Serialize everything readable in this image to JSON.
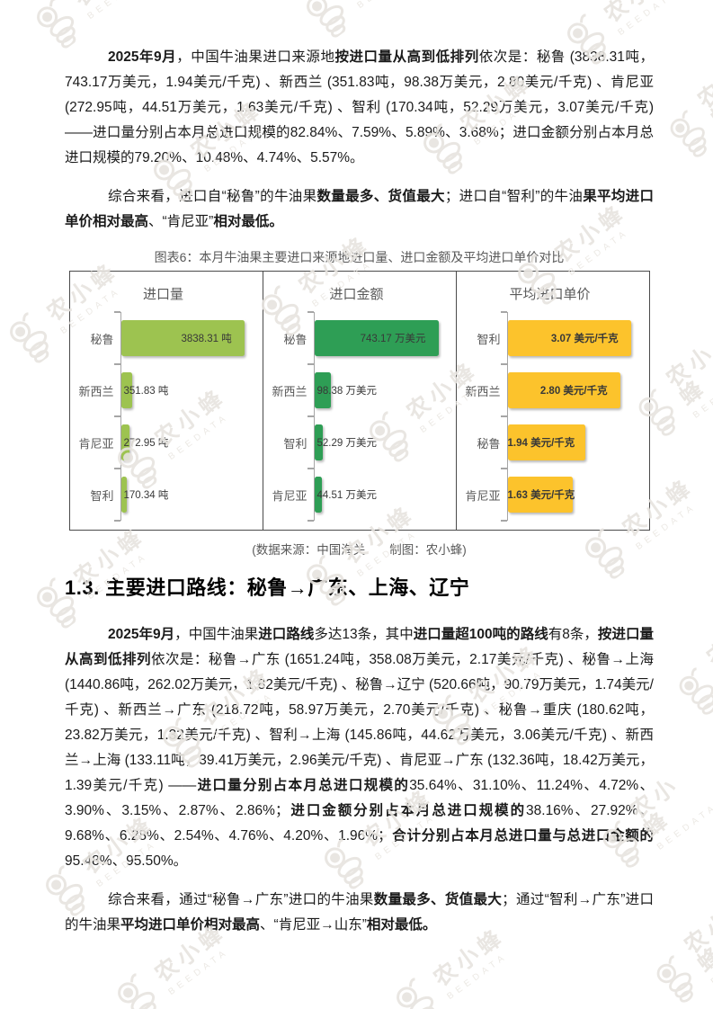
{
  "watermark": {
    "brand": "农小蜂",
    "sub": "BEEDATA"
  },
  "paragraphs": {
    "p1": [
      {
        "b": true,
        "t": "2025年9月"
      },
      {
        "b": false,
        "t": "，中国牛油果进口来源地"
      },
      {
        "b": true,
        "t": "按进口量从高到低排列"
      },
      {
        "b": false,
        "t": "依次是：秘鲁 (3838.31吨，743.17万美元，1.94美元/千克) 、新西兰 (351.83吨，98.38万美元，2.80美元/千克) 、肯尼亚 (272.95吨，44.51万美元，1.63美元/千克) 、智利 (170.34吨，52.29万美元，3.07美元/千克) ——进口量分别占本月总进口规模的82.84%、7.59%、5.89%、3.68%；进口金额分别占本月总进口规模的79.20%、10.48%、4.74%、5.57%。"
      }
    ],
    "p2": [
      {
        "b": false,
        "t": "综合来看，进口自“秘鲁”的牛油果"
      },
      {
        "b": true,
        "t": "数量最多、货值最大"
      },
      {
        "b": false,
        "t": "；进口自“智利”的牛油"
      },
      {
        "b": true,
        "t": "果平均进口单价相对最高"
      },
      {
        "b": false,
        "t": "、“肯尼亚”"
      },
      {
        "b": true,
        "t": "相对最低。"
      }
    ],
    "p3": [
      {
        "b": true,
        "t": "2025年9月"
      },
      {
        "b": false,
        "t": "，中国牛油果"
      },
      {
        "b": true,
        "t": "进口路线"
      },
      {
        "b": false,
        "t": "多达13条，其中"
      },
      {
        "b": true,
        "t": "进口量超100吨的路线"
      },
      {
        "b": false,
        "t": "有8条，"
      },
      {
        "b": true,
        "t": "按进口量从高到低排列"
      },
      {
        "b": false,
        "t": "依次是：秘鲁→广东 (1651.24吨，358.08万美元，2.17美元/千克) 、秘鲁→上海 (1440.86吨，262.02万美元，1.82美元/千克) 、秘鲁→辽宁 (520.66吨，90.79万美元，1.74美元/千克) 、新西兰→广东 (218.72吨，58.97万美元，2.70美元/千克) 、秘鲁→重庆 (180.62吨，23.82万美元，1.32美元/千克) 、智利→上海 (145.86吨，44.62万美元，3.06美元/千克) 、新西兰→上海 (133.11吨，39.41万美元，2.96美元/千克) 、肯尼亚→广东 (132.36吨，18.42万美元，1.39美元/千克) ——"
      },
      {
        "b": true,
        "t": "进口量分别占本月总进口规模的"
      },
      {
        "b": false,
        "t": "35.64%、31.10%、11.24%、4.72%、3.90%、3.15%、2.87%、2.86%；"
      },
      {
        "b": true,
        "t": "进口金额分别占本月总进口规模的"
      },
      {
        "b": false,
        "t": "38.16%、27.92%、9.68%、6.28%、2.54%、4.76%、4.20%、1.96%；"
      },
      {
        "b": true,
        "t": "合计分别占本月总进口量与总进口金额的"
      },
      {
        "b": false,
        "t": "95.48%、95.50%。"
      }
    ],
    "p4": [
      {
        "b": false,
        "t": "综合来看，通过“秘鲁→广东”进口的牛油果"
      },
      {
        "b": true,
        "t": "数量最多、货值最大"
      },
      {
        "b": false,
        "t": "；通过“智利→广东”进口的牛油果"
      },
      {
        "b": true,
        "t": "平均进口单价相对最高"
      },
      {
        "b": false,
        "t": "、“肯尼亚→山东”"
      },
      {
        "b": true,
        "t": "相对最低。"
      }
    ]
  },
  "figure": {
    "caption": "图表6：本月牛油果主要进口来源地进口量、进口金额及平均进口单价对比",
    "source": "(数据来源：中国海关　　制图：农小蜂)"
  },
  "section": {
    "heading": "1.3. 主要进口路线：秘鲁→广东、上海、辽宁"
  },
  "chart_data": [
    {
      "type": "bar",
      "orientation": "horizontal",
      "title": "进口量",
      "categories": [
        "秘鲁",
        "新西兰",
        "肯尼亚",
        "智利"
      ],
      "values": [
        3838.31,
        351.83,
        272.95,
        170.34
      ],
      "value_labels": [
        "3838.31 吨",
        "351.83 吨",
        "272.95 吨",
        "170.34 吨"
      ],
      "unit": "吨",
      "bar_color": "#9DC350",
      "xlim": [
        0,
        4000
      ],
      "bold_value_labels": false,
      "grid": false,
      "legend": false
    },
    {
      "type": "bar",
      "orientation": "horizontal",
      "title": "进口金额",
      "categories": [
        "秘鲁",
        "新西兰",
        "智利",
        "肯尼亚"
      ],
      "values": [
        743.17,
        98.38,
        52.29,
        44.51
      ],
      "value_labels": [
        "743.17 万美元",
        "98.38 万美元",
        "52.29 万美元",
        "44.51 万美元"
      ],
      "unit": "万美元",
      "bar_color": "#2E9E55",
      "xlim": [
        0,
        770
      ],
      "bold_value_labels": false,
      "grid": false,
      "legend": false
    },
    {
      "type": "bar",
      "orientation": "horizontal",
      "title": "平均进口单价",
      "categories": [
        "智利",
        "新西兰",
        "秘鲁",
        "肯尼亚"
      ],
      "values": [
        3.07,
        2.8,
        1.94,
        1.63
      ],
      "value_labels": [
        "3.07 美元/千克",
        "2.80 美元/千克",
        "1.94 美元/千克",
        "1.63 美元/千克"
      ],
      "unit": "美元/千克",
      "bar_color": "#FCC32C",
      "xlim": [
        0,
        3.2
      ],
      "bold_value_labels": true,
      "grid": false,
      "legend": false
    }
  ]
}
